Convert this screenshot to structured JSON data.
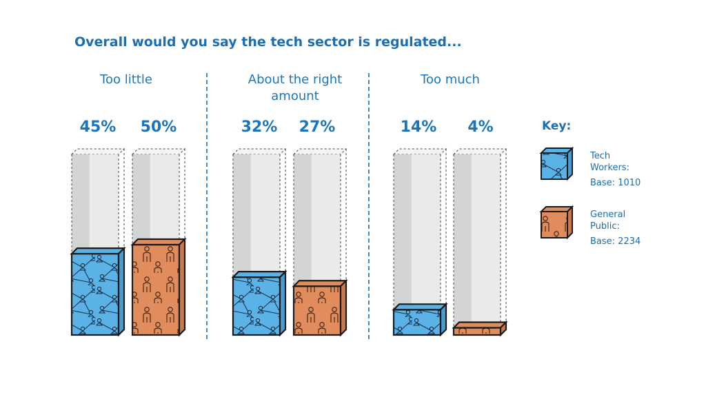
{
  "chart_data": {
    "type": "bar",
    "title": "Overall would you say the tech sector is regulated...",
    "categories": [
      "Too little",
      "About the right amount",
      "Too much"
    ],
    "series": [
      {
        "name": "Tech Workers:",
        "base": "Base: 1010",
        "values": [
          45,
          32,
          14
        ],
        "labels": [
          "45%",
          "32%",
          "14%"
        ]
      },
      {
        "name": "General Public:",
        "base": "Base: 2234",
        "values": [
          50,
          27,
          4
        ],
        "labels": [
          "50%",
          "27%",
          "4%"
        ]
      }
    ],
    "ylim": [
      0,
      100
    ],
    "legend_title": "Key:",
    "legend_position": "right",
    "colors": {
      "tech": "#5ab2e6",
      "public": "#e08c5c",
      "ghost": "#e9ebea",
      "text": "#1b75bc",
      "outline": "#1a1a1a"
    },
    "icons": {
      "tech": "network-people-icon",
      "public": "person-figure-icon"
    }
  }
}
